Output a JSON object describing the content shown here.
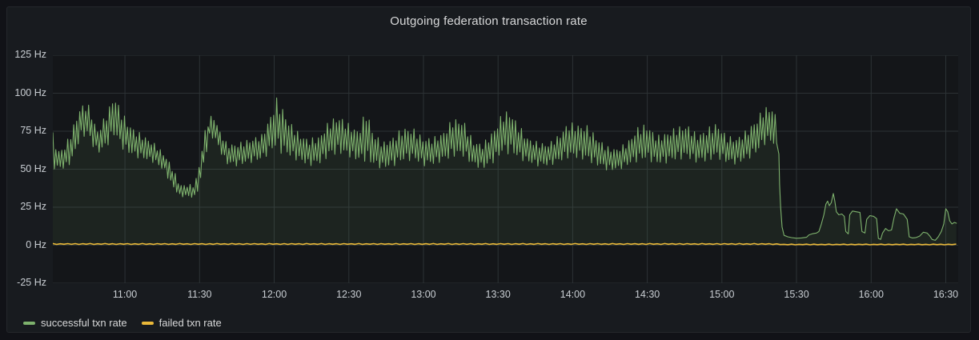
{
  "panel": {
    "title": "Outgoing federation transaction rate"
  },
  "colors": {
    "page_background": "#111217",
    "panel_background": "#181b1f",
    "plot_background": "#141619",
    "grid": "#2c3235",
    "axis_text": "#c9ced3",
    "title_text": "#d8d9da",
    "green": "#7eb26d",
    "yellow": "#eab839"
  },
  "legend": {
    "items": [
      {
        "label": "successful txn rate",
        "color": "#7eb26d"
      },
      {
        "label": "failed txn rate",
        "color": "#eab839"
      }
    ]
  },
  "chart_data": {
    "type": "line",
    "title": "Outgoing federation transaction rate",
    "grid": true,
    "legend_position": "bottom-left",
    "x_axis": {
      "unit": "time of day",
      "t_unit": "minutes after 10:30",
      "range_minutes": [
        1,
        365
      ],
      "ticks": [
        "11:00",
        "11:30",
        "12:00",
        "12:30",
        "13:00",
        "13:30",
        "14:00",
        "14:30",
        "15:00",
        "15:30",
        "16:00",
        "16:30"
      ],
      "tick_minutes": [
        30,
        60,
        90,
        120,
        150,
        180,
        210,
        240,
        270,
        300,
        330,
        360
      ]
    },
    "y_axis": {
      "unit": "Hz",
      "min": -25,
      "max": 125,
      "ticks": [
        "125 Hz",
        "100 Hz",
        "75 Hz",
        "50 Hz",
        "25 Hz",
        "0 Hz",
        "-25 Hz"
      ],
      "tick_values": [
        125,
        100,
        75,
        50,
        25,
        0,
        -25
      ]
    },
    "series": [
      {
        "name": "successful txn rate",
        "color": "#7eb26d",
        "style": "line-with-area",
        "fill_to": 0,
        "fill_opacity": 0.09,
        "line_width": 1.1,
        "zigzag_step": 0.6,
        "envelope_keyframes": [
          [
            1,
            50,
            74
          ],
          [
            3,
            50,
            62
          ],
          [
            6,
            50,
            66
          ],
          [
            9,
            55,
            78
          ],
          [
            12,
            70,
            92
          ],
          [
            15,
            72,
            94
          ],
          [
            17,
            65,
            85
          ],
          [
            19,
            60,
            76
          ],
          [
            22,
            63,
            85
          ],
          [
            25,
            70,
            97
          ],
          [
            26,
            72,
            99
          ],
          [
            28,
            65,
            90
          ],
          [
            31,
            60,
            82
          ],
          [
            34,
            58,
            76
          ],
          [
            38,
            56,
            72
          ],
          [
            42,
            54,
            67
          ],
          [
            46,
            48,
            60
          ],
          [
            49,
            38,
            52
          ],
          [
            52,
            32,
            40
          ],
          [
            58,
            31,
            40
          ],
          [
            60,
            38,
            55
          ],
          [
            62,
            55,
            75
          ],
          [
            64,
            70,
            85
          ],
          [
            66,
            70,
            85
          ],
          [
            68,
            62,
            76
          ],
          [
            71,
            53,
            67
          ],
          [
            75,
            52,
            67
          ],
          [
            80,
            54,
            70
          ],
          [
            85,
            56,
            73
          ],
          [
            88,
            60,
            84
          ],
          [
            91,
            64,
            97
          ],
          [
            93,
            60,
            92
          ],
          [
            96,
            58,
            82
          ],
          [
            100,
            55,
            74
          ],
          [
            104,
            52,
            70
          ],
          [
            108,
            53,
            72
          ],
          [
            112,
            58,
            82
          ],
          [
            116,
            60,
            86
          ],
          [
            120,
            58,
            80
          ],
          [
            124,
            55,
            76
          ],
          [
            127,
            55,
            90
          ],
          [
            130,
            52,
            74
          ],
          [
            134,
            50,
            68
          ],
          [
            138,
            52,
            72
          ],
          [
            142,
            55,
            78
          ],
          [
            146,
            56,
            77
          ],
          [
            150,
            52,
            71
          ],
          [
            154,
            53,
            71
          ],
          [
            158,
            55,
            75
          ],
          [
            162,
            58,
            84
          ],
          [
            166,
            58,
            83
          ],
          [
            170,
            52,
            69
          ],
          [
            174,
            50,
            67
          ],
          [
            178,
            54,
            76
          ],
          [
            182,
            60,
            88
          ],
          [
            185,
            60,
            89
          ],
          [
            188,
            57,
            80
          ],
          [
            192,
            54,
            71
          ],
          [
            196,
            52,
            68
          ],
          [
            200,
            52,
            67
          ],
          [
            204,
            54,
            72
          ],
          [
            208,
            57,
            81
          ],
          [
            212,
            57,
            80
          ],
          [
            216,
            55,
            79
          ],
          [
            220,
            52,
            71
          ],
          [
            224,
            49,
            65
          ],
          [
            228,
            49,
            64
          ],
          [
            232,
            52,
            68
          ],
          [
            236,
            55,
            78
          ],
          [
            240,
            56,
            80
          ],
          [
            244,
            53,
            72
          ],
          [
            248,
            54,
            75
          ],
          [
            252,
            56,
            78
          ],
          [
            256,
            57,
            80
          ],
          [
            260,
            54,
            73
          ],
          [
            264,
            55,
            77
          ],
          [
            268,
            57,
            81
          ],
          [
            272,
            54,
            72
          ],
          [
            276,
            53,
            71
          ],
          [
            280,
            56,
            76
          ],
          [
            284,
            60,
            84
          ],
          [
            287,
            66,
            91
          ],
          [
            290,
            67,
            92
          ],
          [
            292,
            62,
            85
          ]
        ],
        "tail_points": [
          [
            292.9,
            60
          ],
          [
            293.2,
            40
          ],
          [
            293.6,
            25
          ],
          [
            294.2,
            12
          ],
          [
            295,
            6.5
          ],
          [
            296.5,
            5.5
          ],
          [
            298,
            5
          ],
          [
            300,
            4.6
          ],
          [
            302,
            4.8
          ],
          [
            304,
            5.2
          ],
          [
            305,
            6.8
          ],
          [
            306.5,
            7.6
          ],
          [
            308,
            8
          ],
          [
            309,
            9
          ],
          [
            310,
            14
          ],
          [
            311,
            20
          ],
          [
            311.8,
            27
          ],
          [
            312.5,
            29
          ],
          [
            313.2,
            26
          ],
          [
            314,
            28
          ],
          [
            314.8,
            34
          ],
          [
            315.4,
            29
          ],
          [
            316,
            22
          ],
          [
            317,
            20
          ],
          [
            318.2,
            20.5
          ],
          [
            319.2,
            19
          ],
          [
            319.8,
            9
          ],
          [
            320.8,
            7.5
          ],
          [
            321.4,
            20
          ],
          [
            322.5,
            22.5
          ],
          [
            324,
            22
          ],
          [
            325.5,
            21.5
          ],
          [
            326.3,
            9
          ],
          [
            327.5,
            8
          ],
          [
            328.2,
            17
          ],
          [
            329.5,
            19.5
          ],
          [
            331,
            19
          ],
          [
            332.2,
            17.5
          ],
          [
            332.9,
            4.5
          ],
          [
            333.8,
            3.8
          ],
          [
            334.6,
            8
          ],
          [
            335.8,
            11
          ],
          [
            337,
            9.5
          ],
          [
            338.2,
            10
          ],
          [
            339.2,
            18
          ],
          [
            340.2,
            24
          ],
          [
            341.5,
            21
          ],
          [
            343,
            20.5
          ],
          [
            344.5,
            17
          ],
          [
            345.3,
            5.5
          ],
          [
            346.5,
            4.8
          ],
          [
            348,
            5
          ],
          [
            349.5,
            6
          ],
          [
            351,
            8.5
          ],
          [
            352.5,
            8
          ],
          [
            353.6,
            6
          ],
          [
            354.5,
            3.8
          ],
          [
            355.8,
            3.2
          ],
          [
            357,
            5.5
          ],
          [
            358.2,
            9
          ],
          [
            359.2,
            14
          ],
          [
            360,
            24
          ],
          [
            360.8,
            22
          ],
          [
            361.6,
            16
          ],
          [
            362.5,
            14
          ],
          [
            363.5,
            15
          ],
          [
            364.3,
            14.5
          ]
        ]
      },
      {
        "name": "failed txn rate",
        "color": "#eab839",
        "style": "line",
        "line_width": 1.6,
        "zigzag_step": 1.5,
        "envelope_keyframes": [
          [
            1,
            0.5,
            1.1
          ],
          [
            290,
            0.5,
            1.1
          ],
          [
            295,
            0.25,
            0.7
          ],
          [
            365,
            0.25,
            0.7
          ]
        ]
      }
    ]
  }
}
